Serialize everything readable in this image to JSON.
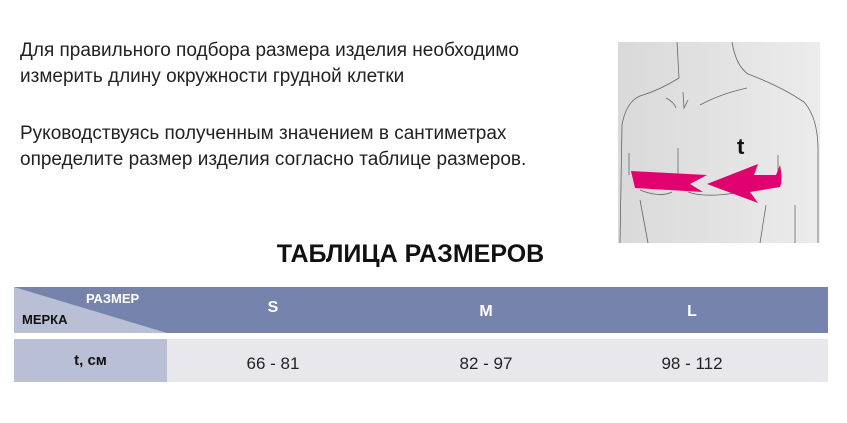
{
  "intro": {
    "paragraph1": [
      "Для правильного подбора размера изделия необходимо",
      "измерить длину окружности грудной клетки"
    ],
    "paragraph2": [
      "Руководствуясь полученным значением в сантиметрах",
      "определите размер изделия согласно таблице размеров."
    ]
  },
  "illustration": {
    "label": "t",
    "arrow_color": "#e0006e"
  },
  "table": {
    "title": "ТАБЛИЦА РАЗМЕРОВ",
    "corner_size_label": "РАЗМЕР",
    "corner_measure_label": "МЕРКА",
    "sizes": [
      "S",
      "M",
      "L"
    ],
    "row_label": "t, см",
    "values": [
      "66 - 81",
      "82 - 97",
      "98 - 112"
    ],
    "colors": {
      "header": "#7683ad",
      "label_cell": "#b9bfd5",
      "data_row": "#e8e8ec"
    }
  }
}
